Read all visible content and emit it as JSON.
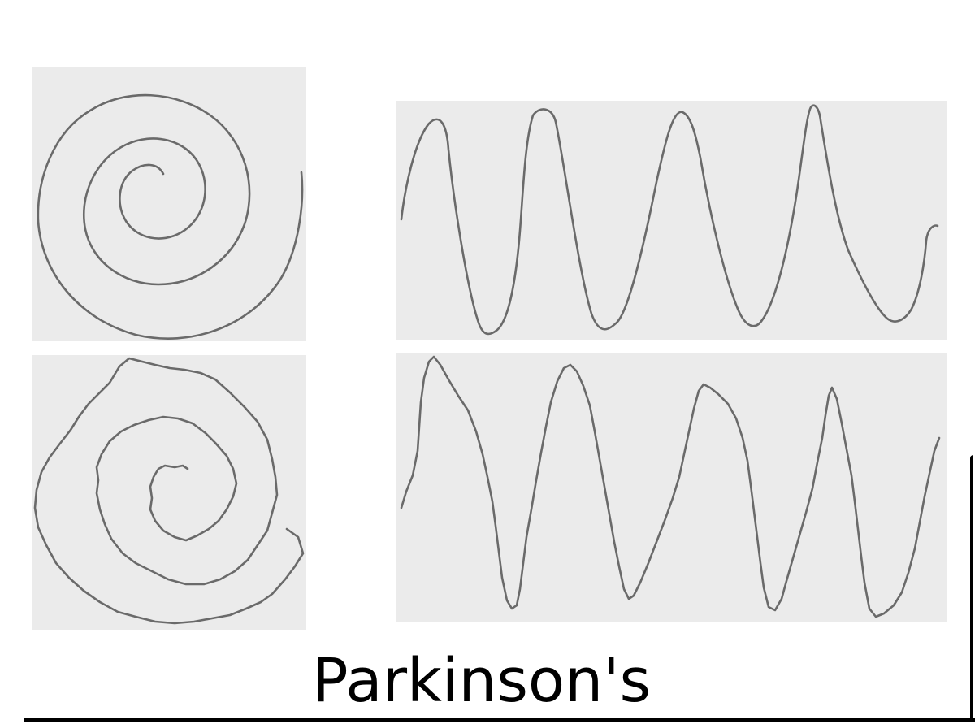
{
  "caption": {
    "text": "Parkinson's"
  },
  "colors": {
    "paper": "#ebebeb",
    "pencil": "#6a6a6a",
    "background": "#ffffff",
    "text": "#000000"
  }
}
